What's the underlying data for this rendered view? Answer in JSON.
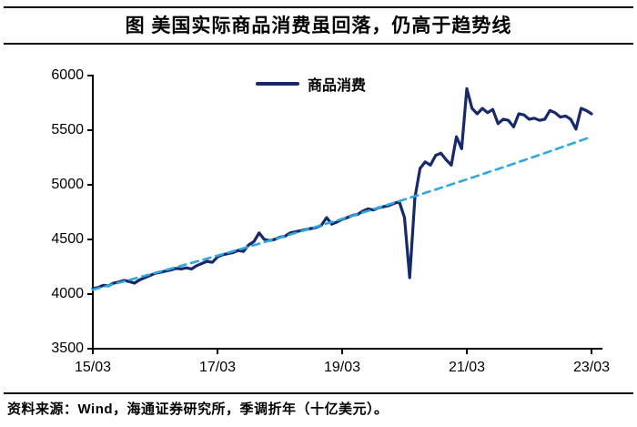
{
  "title": "图 美国实际商品消费虽回落，仍高于趋势线",
  "legend": {
    "label": "商品消费"
  },
  "source_note": "资料来源：Wind，海通证券研究所，季调折年（十亿美元）。",
  "colors": {
    "series_line": "#16296b",
    "trend_line": "#2fa8e1",
    "axis": "#000000",
    "background": "#ffffff"
  },
  "chart_data": {
    "type": "line",
    "title": "图 美国实际商品消费虽回落，仍高于趋势线",
    "unit": "十亿美元，季调折年",
    "grid": false,
    "legend_position": "top-center",
    "ylim": [
      3500,
      6000
    ],
    "y_ticks": [
      6000,
      5500,
      5000,
      4500,
      4000,
      3500
    ],
    "x_tick_labels": [
      "15/03",
      "17/03",
      "19/03",
      "21/03",
      "23/03"
    ],
    "x_start": "2015-03",
    "x_end": "2023-03",
    "x_freq": "monthly",
    "series": [
      {
        "name": "商品消费",
        "style": "solid",
        "color": "#16296b",
        "values": [
          4050,
          4060,
          4080,
          4075,
          4100,
          4110,
          4125,
          4115,
          4100,
          4130,
          4150,
          4170,
          4190,
          4200,
          4210,
          4220,
          4235,
          4230,
          4240,
          4230,
          4260,
          4280,
          4300,
          4290,
          4340,
          4360,
          4370,
          4380,
          4400,
          4390,
          4450,
          4480,
          4560,
          4500,
          4490,
          4500,
          4520,
          4530,
          4560,
          4570,
          4580,
          4590,
          4600,
          4610,
          4630,
          4700,
          4640,
          4660,
          4685,
          4700,
          4720,
          4730,
          4760,
          4780,
          4770,
          4790,
          4800,
          4810,
          4830,
          4845,
          4700,
          4150,
          4880,
          5150,
          5210,
          5180,
          5270,
          5290,
          5230,
          5180,
          5440,
          5330,
          5880,
          5700,
          5650,
          5700,
          5660,
          5690,
          5560,
          5600,
          5590,
          5530,
          5650,
          5640,
          5600,
          5610,
          5590,
          5600,
          5680,
          5660,
          5620,
          5630,
          5600,
          5510,
          5700,
          5680,
          5650
        ]
      },
      {
        "name": "趋势线",
        "style": "dashed",
        "color": "#2fa8e1",
        "trend": {
          "type": "exponential",
          "start_value": 4040,
          "end_value": 5440,
          "points": 97
        }
      }
    ]
  }
}
